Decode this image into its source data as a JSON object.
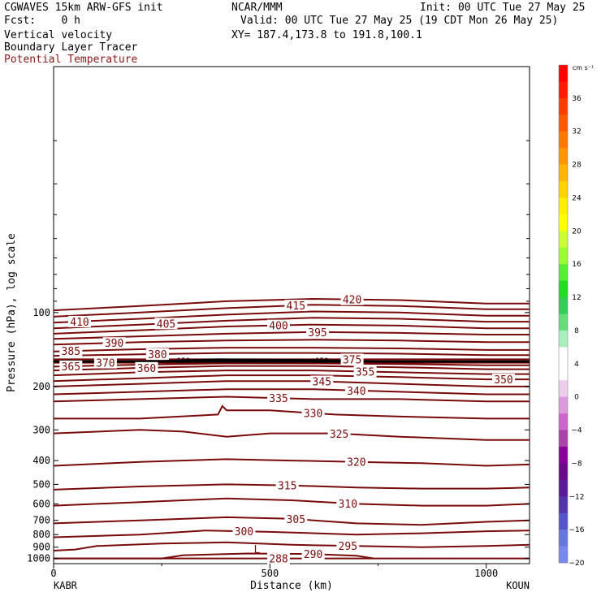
{
  "header": {
    "model": "CGWAVES 15km ARW-GFS init",
    "fcst": "Fcst:    0 h",
    "org": "NCAR/MMM",
    "init": "Init: 00 UTC Tue 27 May 25",
    "valid": "Valid: 00 UTC Tue 27 May 25 (19 CDT Mon 26 May 25)",
    "field1": "Vertical velocity",
    "field2": "Boundary Layer Tracer",
    "field3": "Potential Temperature",
    "xy": "XY= 187.4,173.8 to 191.8,100.1"
  },
  "colors": {
    "theta": "#7a0a0a",
    "field3_text": "#8b1a1a",
    "tracer": "#000000"
  },
  "chart_data": {
    "type": "line",
    "title": "",
    "xlabel": "Distance (km)",
    "ylabel": "Pressure (hPa), log scale",
    "xlim": [
      0,
      1100
    ],
    "ylim": [
      1050,
      10
    ],
    "y_scale": "log",
    "x_ticks": [
      0,
      500,
      1000
    ],
    "y_ticks": [
      100,
      200,
      300,
      400,
      500,
      600,
      700,
      800,
      900,
      1000
    ],
    "left_endpoint": "KABR",
    "right_endpoint": "KOUN",
    "low_marker": {
      "label": "L",
      "x": 470,
      "p": 915
    },
    "tracer_labels": [
      {
        "text": "150",
        "x": 300,
        "p": 157
      },
      {
        "text": "150",
        "x": 620,
        "p": 157
      }
    ],
    "colorbar": {
      "units": "cm s⁻¹",
      "ticks": [
        "36",
        "32",
        "28",
        "24",
        "20",
        "16",
        "12",
        "8",
        "4",
        "0",
        "−4",
        "−8",
        "−12",
        "−16",
        "−20"
      ],
      "colors": [
        "#ff0000",
        "#ff1e00",
        "#ff3c00",
        "#ff5a00",
        "#ff7800",
        "#ff9600",
        "#ffb400",
        "#ffd200",
        "#ffee00",
        "#ffff00",
        "#ccff33",
        "#99ff33",
        "#55ee33",
        "#22dd22",
        "#33cc55",
        "#66dd77",
        "#aaeebb",
        "#ffffff",
        "#ffffff",
        "#eeccee",
        "#dd99dd",
        "#cc66cc",
        "#aa44aa",
        "#880099",
        "#6a0a8a",
        "#5a1a9a",
        "#5533aa",
        "#5555cc",
        "#6677dd",
        "#7788ee"
      ]
    },
    "series": [
      {
        "name": "288",
        "label_x": 520,
        "x": [
          0,
          1100
        ],
        "p": [
          1000,
          1000
        ]
      },
      {
        "name": "290",
        "label_x": 600,
        "x": [
          0,
          250,
          300,
          450,
          600,
          700,
          740
        ],
        "p": [
          1000,
          1000,
          970,
          955,
          960,
          975,
          1000
        ]
      },
      {
        "name": "295",
        "label_x": 680,
        "x": [
          0,
          50,
          100,
          250,
          400,
          550,
          700,
          850,
          1000,
          1100
        ],
        "p": [
          930,
          920,
          890,
          870,
          860,
          880,
          890,
          900,
          890,
          880
        ]
      },
      {
        "name": "300",
        "label_x": 440,
        "x": [
          0,
          200,
          350,
          500,
          700,
          850,
          1000,
          1100
        ],
        "p": [
          820,
          800,
          770,
          780,
          800,
          790,
          775,
          770
        ]
      },
      {
        "name": "305",
        "label_x": 560,
        "x": [
          0,
          200,
          400,
          550,
          700,
          850,
          1000,
          1100
        ],
        "p": [
          720,
          700,
          680,
          690,
          720,
          730,
          710,
          700
        ]
      },
      {
        "name": "310",
        "label_x": 680,
        "x": [
          0,
          200,
          400,
          550,
          700,
          850,
          1000,
          1100
        ],
        "p": [
          610,
          590,
          570,
          580,
          600,
          610,
          610,
          600
        ]
      },
      {
        "name": "315",
        "label_x": 540,
        "x": [
          0,
          200,
          400,
          550,
          700,
          850,
          1000,
          1100
        ],
        "p": [
          525,
          510,
          500,
          505,
          515,
          520,
          520,
          515
        ]
      },
      {
        "name": "320",
        "label_x": 700,
        "x": [
          0,
          200,
          400,
          550,
          700,
          850,
          1000,
          1100
        ],
        "p": [
          420,
          405,
          395,
          400,
          405,
          410,
          420,
          415
        ]
      },
      {
        "name": "325",
        "label_x": 660,
        "x": [
          0,
          200,
          300,
          400,
          500,
          650,
          800,
          1000,
          1100
        ],
        "p": [
          310,
          300,
          305,
          320,
          310,
          310,
          320,
          330,
          330
        ]
      },
      {
        "name": "330",
        "label_x": 600,
        "x": [
          0,
          200,
          380,
          390,
          400,
          500,
          650,
          800,
          1000,
          1100
        ],
        "p": [
          270,
          270,
          260,
          240,
          250,
          250,
          260,
          265,
          270,
          270
        ]
      },
      {
        "name": "335",
        "label_x": 520,
        "x": [
          0,
          200,
          400,
          600,
          800,
          1000,
          1100
        ],
        "p": [
          230,
          225,
          220,
          225,
          225,
          230,
          230
        ]
      },
      {
        "name": "340",
        "label_x": 700,
        "x": [
          0,
          200,
          400,
          600,
          800,
          1000,
          1100
        ],
        "p": [
          215,
          210,
          205,
          205,
          210,
          215,
          215
        ]
      },
      {
        "name": "345",
        "label_x": 620,
        "x": [
          0,
          200,
          400,
          600,
          800,
          1000,
          1100
        ],
        "p": [
          200,
          195,
          190,
          190,
          195,
          200,
          200
        ]
      },
      {
        "name": "350",
        "label_x": 1040,
        "x": [
          0,
          200,
          400,
          600,
          800,
          1000,
          1100
        ],
        "p": [
          190,
          185,
          180,
          180,
          183,
          187,
          187
        ]
      },
      {
        "name": "355",
        "label_x": 720,
        "x": [
          0,
          200,
          400,
          600,
          800,
          1000,
          1100
        ],
        "p": [
          180,
          175,
          172,
          172,
          175,
          178,
          178
        ]
      },
      {
        "name": "360",
        "label_x": 215,
        "x": [
          0,
          200,
          400,
          600,
          800,
          1000,
          1100
        ],
        "p": [
          172,
          168,
          165,
          165,
          167,
          170,
          170
        ]
      },
      {
        "name": "365",
        "label_x": 40,
        "x": [
          0,
          200,
          400,
          600,
          800,
          1000,
          1100
        ],
        "p": [
          166,
          163,
          161,
          161,
          162,
          164,
          164
        ]
      },
      {
        "name": "370",
        "label_x": 120,
        "x": [
          0,
          1100
        ],
        "p": [
          160,
          160
        ]
      },
      {
        "name": "375",
        "label_x": 690,
        "x": [
          0,
          1100
        ],
        "p": [
          155,
          155
        ]
      },
      {
        "name": "380",
        "label_x": 240,
        "x": [
          0,
          200,
          400,
          600,
          800,
          1000,
          1100
        ],
        "p": [
          150,
          148,
          146,
          146,
          147,
          149,
          149
        ]
      },
      {
        "name": "385",
        "label_x": 40,
        "x": [
          0,
          200,
          400,
          600,
          800,
          1000,
          1100
        ],
        "p": [
          144,
          141,
          139,
          139,
          140,
          142,
          142
        ]
      },
      {
        "name": "390",
        "label_x": 140,
        "x": [
          0,
          200,
          400,
          600,
          800,
          1000,
          1100
        ],
        "p": [
          135,
          132,
          130,
          129,
          130,
          132,
          132
        ]
      },
      {
        "name": "395",
        "label_x": 610,
        "x": [
          0,
          200,
          400,
          600,
          800,
          1000,
          1100
        ],
        "p": [
          128,
          125,
          122,
          120,
          121,
          123,
          123
        ]
      },
      {
        "name": "400",
        "label_x": 520,
        "x": [
          0,
          200,
          400,
          600,
          800,
          1000,
          1100
        ],
        "p": [
          122,
          118,
          114,
          112,
          113,
          116,
          116
        ]
      },
      {
        "name": "405",
        "label_x": 260,
        "x": [
          0,
          200,
          400,
          600,
          800,
          1000,
          1100
        ],
        "p": [
          116,
          112,
          108,
          105,
          106,
          109,
          109
        ]
      },
      {
        "name": "410",
        "label_x": 60,
        "x": [
          0,
          200,
          400,
          600,
          800,
          1000,
          1100
        ],
        "p": [
          110,
          106,
          102,
          99,
          100,
          103,
          103
        ]
      },
      {
        "name": "415",
        "label_x": 560,
        "x": [
          0,
          200,
          400,
          600,
          800,
          1000,
          1100
        ],
        "p": [
          104,
          100,
          96,
          93,
          94,
          97,
          97
        ]
      },
      {
        "name": "420",
        "label_x": 690,
        "x": [
          0,
          200,
          400,
          600,
          800,
          1000,
          1100
        ],
        "p": [
          98,
          94,
          90,
          88,
          89,
          92,
          92
        ]
      }
    ]
  }
}
